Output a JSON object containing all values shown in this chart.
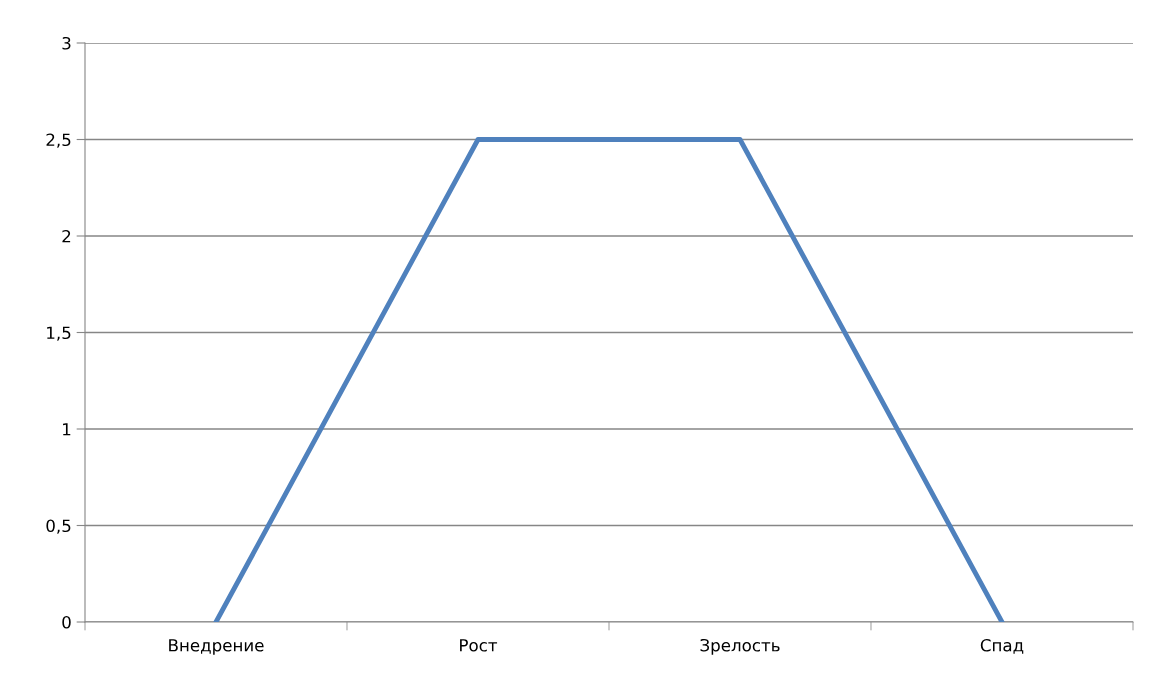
{
  "chart_data": {
    "type": "line",
    "categories": [
      "Внедрение",
      "Рост",
      "Зрелость",
      "Спад"
    ],
    "series": [
      {
        "color": "#4f81bd",
        "values": [
          0,
          2.5,
          2.5,
          0
        ]
      }
    ],
    "ylim": [
      0,
      3
    ],
    "yticks": [
      0,
      {
        "value": 0.5,
        "label": "0,5"
      },
      1,
      {
        "value": 1.5,
        "label": "1,5"
      },
      2,
      {
        "value": 2.5,
        "label": "2,5"
      },
      3
    ],
    "grid": "y",
    "marker": "none",
    "line_style": "solid"
  }
}
